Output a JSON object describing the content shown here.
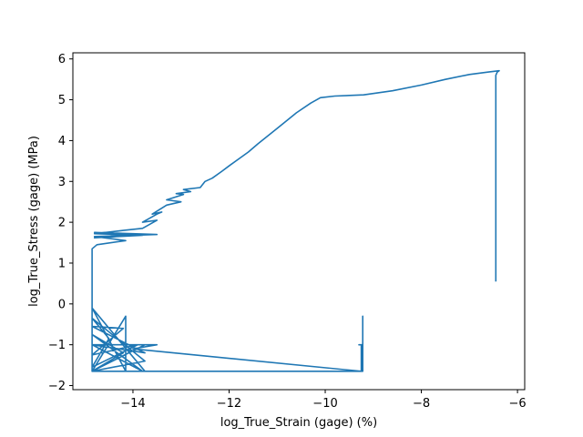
{
  "chart_data": {
    "type": "line",
    "title": "",
    "xlabel": "log_True_Strain (gage) (%)",
    "ylabel": "log_True_Stress (gage) (MPa)",
    "xlim": [
      -15.25,
      -5.85
    ],
    "ylim": [
      -2.1,
      6.15
    ],
    "xticks": [
      -14,
      -12,
      -10,
      -8,
      -6
    ],
    "xtick_labels": [
      "−14",
      "−12",
      "−10",
      "−8",
      "−6"
    ],
    "yticks": [
      -2,
      -1,
      0,
      1,
      2,
      3,
      4,
      5,
      6
    ],
    "ytick_labels": [
      "−2",
      "−1",
      "0",
      "1",
      "2",
      "3",
      "4",
      "5",
      "6"
    ],
    "grid": false,
    "legend": "none",
    "series": [
      {
        "color": "#1f77b4",
        "points": [
          [
            -14.85,
            -1.65
          ],
          [
            -14.2,
            -1.2
          ],
          [
            -14.85,
            -0.75
          ],
          [
            -13.8,
            -1.65
          ],
          [
            -14.85,
            -1.0
          ],
          [
            -13.75,
            -1.2
          ],
          [
            -14.85,
            -0.55
          ],
          [
            -14.2,
            -0.6
          ],
          [
            -14.85,
            -1.25
          ],
          [
            -13.9,
            -1.0
          ],
          [
            -14.85,
            -1.55
          ],
          [
            -14.5,
            -0.85
          ],
          [
            -14.85,
            -0.35
          ],
          [
            -13.75,
            -1.4
          ],
          [
            -14.85,
            -1.65
          ],
          [
            -14.15,
            -0.3
          ],
          [
            -14.15,
            -1.65
          ],
          [
            -14.85,
            -0.1
          ],
          [
            -13.75,
            -1.65
          ],
          [
            -14.85,
            -1.65
          ],
          [
            -13.75,
            -1.0
          ],
          [
            -14.85,
            -1.0
          ],
          [
            -13.5,
            -1.0
          ],
          [
            -14.0,
            -1.1
          ],
          [
            -9.25,
            -1.65
          ],
          [
            -9.25,
            -1.0
          ],
          [
            -9.3,
            -1.0
          ],
          [
            -9.22,
            -1.0
          ],
          [
            -9.22,
            -0.3
          ],
          [
            -9.22,
            -1.65
          ],
          [
            -14.85,
            -1.65
          ],
          [
            -14.85,
            1.35
          ],
          [
            -14.75,
            1.45
          ],
          [
            -14.15,
            1.55
          ],
          [
            -14.8,
            1.65
          ],
          [
            -13.5,
            1.7
          ],
          [
            -14.8,
            1.75
          ],
          [
            -13.8,
            1.68
          ],
          [
            -14.8,
            1.62
          ],
          [
            -14.2,
            1.7
          ],
          [
            -14.8,
            1.72
          ],
          [
            -14.2,
            1.8
          ],
          [
            -13.8,
            1.85
          ],
          [
            -13.5,
            2.05
          ],
          [
            -13.8,
            2.0
          ],
          [
            -13.5,
            2.2
          ],
          [
            -13.4,
            2.25
          ],
          [
            -13.6,
            2.2
          ],
          [
            -13.3,
            2.42
          ],
          [
            -13.0,
            2.5
          ],
          [
            -13.3,
            2.55
          ],
          [
            -12.95,
            2.68
          ],
          [
            -13.1,
            2.7
          ],
          [
            -12.8,
            2.75
          ],
          [
            -12.95,
            2.8
          ],
          [
            -12.6,
            2.85
          ],
          [
            -12.5,
            3.0
          ],
          [
            -12.35,
            3.08
          ],
          [
            -12.15,
            3.25
          ],
          [
            -12.0,
            3.38
          ],
          [
            -11.8,
            3.55
          ],
          [
            -11.6,
            3.72
          ],
          [
            -11.4,
            3.92
          ],
          [
            -11.0,
            4.3
          ],
          [
            -10.6,
            4.68
          ],
          [
            -10.3,
            4.92
          ],
          [
            -10.1,
            5.05
          ],
          [
            -9.8,
            5.09
          ],
          [
            -9.2,
            5.12
          ],
          [
            -8.6,
            5.22
          ],
          [
            -8.0,
            5.36
          ],
          [
            -7.5,
            5.5
          ],
          [
            -7.0,
            5.62
          ],
          [
            -6.6,
            5.68
          ],
          [
            -6.38,
            5.71
          ],
          [
            -6.42,
            5.68
          ],
          [
            -6.45,
            5.6
          ],
          [
            -6.45,
            0.55
          ]
        ]
      }
    ]
  }
}
